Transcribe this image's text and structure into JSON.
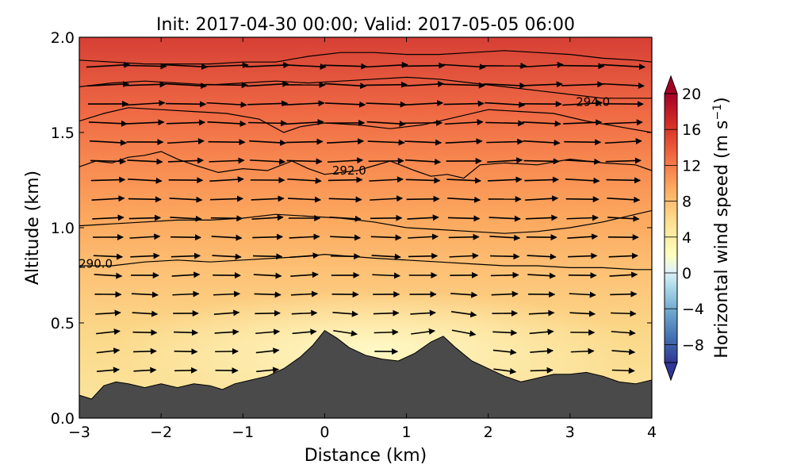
{
  "chart_data": {
    "type": "heatmap",
    "title": "Init: 2017-04-30 00:00; Valid: 2017-05-05 06:00",
    "xlabel": "Distance (km)",
    "ylabel": "Altitude (km)",
    "xlim": [
      -3,
      4
    ],
    "ylim": [
      0.0,
      2.0
    ],
    "xticks": [
      -3,
      -2,
      -1,
      0,
      1,
      2,
      3,
      4
    ],
    "xtick_labels": [
      "−3",
      "−2",
      "−1",
      "0",
      "1",
      "2",
      "3",
      "4"
    ],
    "yticks": [
      0.0,
      0.5,
      1.0,
      1.5,
      2.0
    ],
    "ytick_labels": [
      "0.0",
      "0.5",
      "1.0",
      "1.5",
      "2.0"
    ],
    "colorbar": {
      "label": "Horizontal wind speed (m s",
      "label_superscript": "−1",
      "label_close": ")",
      "range": [
        -10,
        20
      ],
      "ticks": [
        -8,
        -4,
        0,
        4,
        8,
        12,
        16,
        20
      ],
      "tick_labels": [
        "−8",
        "−4",
        "0",
        "4",
        "8",
        "12",
        "16",
        "20"
      ],
      "colormap": "RdYlBu_r",
      "extend": "both"
    },
    "terrain": {
      "color": "#4a4a4a",
      "x": [
        -3.0,
        -2.85,
        -2.7,
        -2.55,
        -2.4,
        -2.2,
        -2.0,
        -1.8,
        -1.6,
        -1.4,
        -1.25,
        -1.1,
        -0.9,
        -0.7,
        -0.5,
        -0.3,
        -0.15,
        0.0,
        0.15,
        0.3,
        0.5,
        0.7,
        0.9,
        1.1,
        1.3,
        1.45,
        1.6,
        1.8,
        2.0,
        2.2,
        2.4,
        2.6,
        2.8,
        3.0,
        3.2,
        3.4,
        3.6,
        3.8,
        4.0
      ],
      "y": [
        0.12,
        0.1,
        0.17,
        0.19,
        0.18,
        0.16,
        0.18,
        0.16,
        0.18,
        0.17,
        0.15,
        0.18,
        0.2,
        0.22,
        0.26,
        0.32,
        0.38,
        0.46,
        0.42,
        0.37,
        0.33,
        0.31,
        0.3,
        0.34,
        0.4,
        0.43,
        0.37,
        0.3,
        0.26,
        0.22,
        0.19,
        0.21,
        0.23,
        0.23,
        0.24,
        0.22,
        0.19,
        0.18,
        0.2
      ]
    },
    "contours": [
      {
        "level": 290.0,
        "label": "290.0",
        "label_x": -2.8,
        "label_y": 0.81,
        "x": [
          -3.0,
          -2.6,
          -2.2,
          -1.8,
          -1.4,
          -1.0,
          -0.6,
          -0.2,
          0.0,
          0.3,
          0.6,
          1.0,
          1.4,
          1.8,
          2.2,
          2.6,
          3.0,
          3.4,
          3.8,
          4.0
        ],
        "y": [
          0.8,
          0.8,
          0.82,
          0.83,
          0.82,
          0.83,
          0.84,
          0.85,
          0.86,
          0.85,
          0.84,
          0.83,
          0.82,
          0.81,
          0.8,
          0.8,
          0.79,
          0.79,
          0.78,
          0.78
        ]
      },
      {
        "level": 291.0,
        "label": "",
        "x": [
          -3.0,
          -2.6,
          -2.2,
          -1.8,
          -1.4,
          -1.0,
          -0.6,
          -0.2,
          0.2,
          0.6,
          1.0,
          1.4,
          1.8,
          2.2,
          2.6,
          3.0,
          3.4,
          3.8,
          4.0
        ],
        "y": [
          1.01,
          1.02,
          1.03,
          1.04,
          1.04,
          1.05,
          1.07,
          1.06,
          1.05,
          1.03,
          1.0,
          0.99,
          0.98,
          0.97,
          0.98,
          1.0,
          1.03,
          1.07,
          1.09
        ]
      },
      {
        "level": 292.0,
        "label": "292.0",
        "label_x": 0.3,
        "label_y": 1.3,
        "x": [
          -3.0,
          -2.8,
          -2.6,
          -2.4,
          -2.2,
          -2.0,
          -1.8,
          -1.6,
          -1.3,
          -1.0,
          -0.7,
          -0.4,
          -0.2,
          0.0,
          0.4,
          0.8,
          1.1,
          1.3,
          1.5,
          1.7,
          1.9,
          2.2,
          2.6,
          3.0,
          3.4,
          3.8,
          4.0
        ],
        "y": [
          1.32,
          1.35,
          1.34,
          1.37,
          1.38,
          1.4,
          1.36,
          1.33,
          1.29,
          1.31,
          1.3,
          1.35,
          1.31,
          1.28,
          1.3,
          1.35,
          1.3,
          1.27,
          1.28,
          1.26,
          1.33,
          1.34,
          1.33,
          1.36,
          1.34,
          1.33,
          1.3
        ]
      },
      {
        "level": 293.0,
        "label": "",
        "x": [
          -3.0,
          -2.7,
          -2.4,
          -2.0,
          -1.6,
          -1.2,
          -0.8,
          -0.5,
          -0.3,
          0.0,
          0.4,
          0.8,
          1.2,
          1.6,
          2.0,
          2.4,
          2.8,
          3.2,
          3.6,
          4.0
        ],
        "y": [
          1.56,
          1.6,
          1.63,
          1.62,
          1.61,
          1.6,
          1.57,
          1.5,
          1.53,
          1.55,
          1.54,
          1.52,
          1.54,
          1.58,
          1.62,
          1.61,
          1.6,
          1.56,
          1.53,
          1.5
        ]
      },
      {
        "level": 294.0,
        "label": "294.0",
        "label_x": 3.28,
        "label_y": 1.66,
        "x": [
          -3.0,
          -2.6,
          -2.2,
          -1.8,
          -1.4,
          -1.0,
          -0.6,
          -0.2,
          0.2,
          0.6,
          1.0,
          1.4,
          1.8,
          2.2,
          2.6,
          3.0,
          3.4,
          3.8,
          4.0
        ],
        "y": [
          1.74,
          1.76,
          1.77,
          1.76,
          1.75,
          1.76,
          1.77,
          1.76,
          1.77,
          1.78,
          1.79,
          1.78,
          1.76,
          1.74,
          1.72,
          1.7,
          1.68,
          1.68,
          1.68
        ]
      },
      {
        "level": 295.0,
        "label": "",
        "x": [
          -3.0,
          -2.6,
          -2.2,
          -1.8,
          -1.4,
          -1.0,
          -0.6,
          -0.2,
          0.2,
          0.6,
          1.0,
          1.4,
          1.8,
          2.2,
          2.6,
          3.0,
          3.4,
          3.8,
          4.0
        ],
        "y": [
          1.88,
          1.87,
          1.86,
          1.86,
          1.86,
          1.87,
          1.87,
          1.9,
          1.92,
          1.92,
          1.91,
          1.91,
          1.92,
          1.93,
          1.92,
          1.91,
          1.89,
          1.88,
          1.87
        ]
      }
    ],
    "wind_field": {
      "description_values": "speed in m/s, approximate",
      "columns_x": [
        -2.65,
        -2.2,
        -1.7,
        -1.2,
        -0.7,
        -0.25,
        0.25,
        0.75,
        1.2,
        1.7,
        2.2,
        2.65,
        3.15,
        3.65
      ],
      "rows_y": [
        0.25,
        0.35,
        0.45,
        0.55,
        0.65,
        0.75,
        0.85,
        0.95,
        1.05,
        1.15,
        1.25,
        1.35,
        1.45,
        1.55,
        1.65,
        1.75,
        1.85
      ],
      "speed_profile": [
        [
          0.0,
          2.0
        ],
        [
          0.4,
          3.5
        ],
        [
          0.6,
          5.0
        ],
        [
          0.8,
          6.5
        ],
        [
          1.0,
          8.0
        ],
        [
          1.2,
          9.5
        ],
        [
          1.4,
          11.0
        ],
        [
          1.6,
          13.0
        ],
        [
          1.8,
          15.0
        ],
        [
          2.0,
          17.0
        ]
      ]
    }
  }
}
